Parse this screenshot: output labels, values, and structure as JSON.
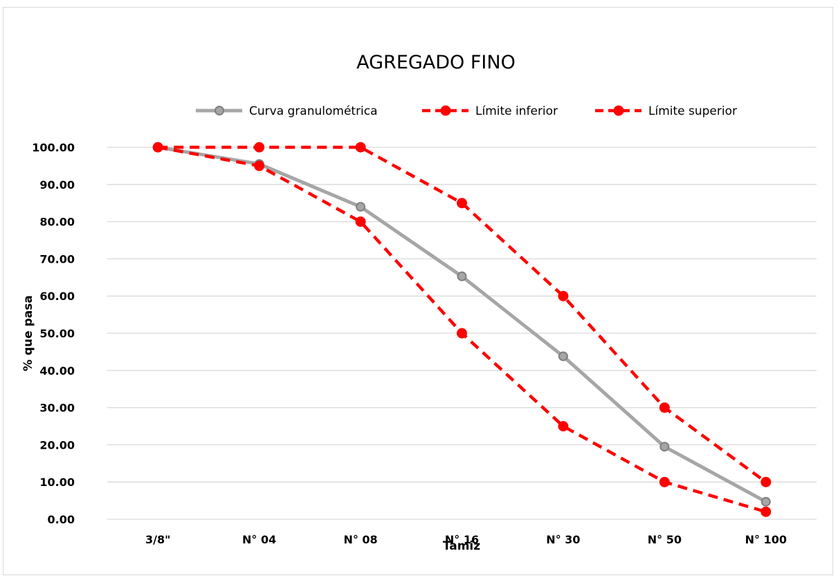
{
  "chart_data": {
    "type": "line",
    "title": "AGREGADO FINO",
    "xlabel": "Tamiz",
    "ylabel": "% que pasa",
    "categories": [
      "3/8\"",
      "N° 04",
      "N° 08",
      "N° 16",
      "N° 30",
      "N° 50",
      "N° 100"
    ],
    "ylim": [
      0,
      100
    ],
    "yticks": [
      "0.00",
      "10.00",
      "20.00",
      "30.00",
      "40.00",
      "50.00",
      "60.00",
      "70.00",
      "80.00",
      "90.00",
      "100.00"
    ],
    "grid": true,
    "legend_position": "top",
    "series": [
      {
        "name": "Curva granulométrica",
        "values": [
          100,
          95.5,
          84,
          65.3,
          43.8,
          19.5,
          4.7
        ],
        "color": "#a6a6a6",
        "marker_fill": "#a6a6a6",
        "marker_stroke": "#7f7f7f",
        "style": "solid"
      },
      {
        "name": "Límite inferior",
        "values": [
          100,
          95,
          80,
          50,
          25,
          10,
          2
        ],
        "color": "#ff0000",
        "marker_fill": "#ff0000",
        "marker_stroke": "#ff0000",
        "style": "dashed"
      },
      {
        "name": "Límite superior",
        "values": [
          100,
          100,
          100,
          85,
          60,
          30,
          10
        ],
        "color": "#ff0000",
        "marker_fill": "#ff0000",
        "marker_stroke": "#ff0000",
        "style": "dashed"
      }
    ]
  }
}
